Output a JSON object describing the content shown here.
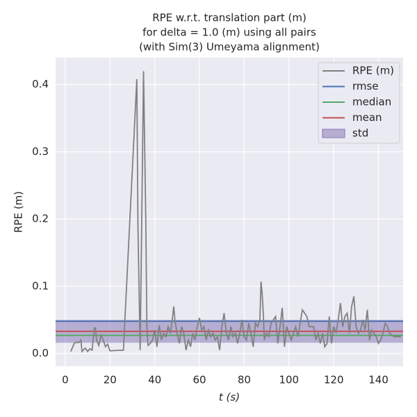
{
  "chart_data": {
    "type": "line",
    "title": [
      "RPE w.r.t. translation part (m)",
      "for delta = 1.0 (m) using all pairs",
      "(with Sim(3) Umeyama alignment)"
    ],
    "xlabel": "t (s)",
    "ylabel": "RPE (m)",
    "x": [
      2.5,
      4,
      5,
      6,
      7,
      7.5,
      8,
      9,
      10,
      11,
      12,
      13,
      13.5,
      14,
      15,
      16,
      17,
      18,
      19,
      20,
      26,
      32,
      32.5,
      33.5,
      35,
      36,
      36.5,
      37,
      38,
      39,
      40,
      41,
      42,
      43,
      44,
      45,
      46,
      47,
      48,
      48.5,
      49,
      50,
      51,
      52,
      53,
      54,
      55,
      56,
      57,
      58,
      59,
      60,
      61,
      62,
      63,
      64,
      65,
      66,
      67,
      68,
      69,
      70,
      71,
      72,
      73,
      74,
      75,
      76,
      77,
      78,
      79,
      80,
      81,
      82,
      83,
      84,
      85,
      86,
      87,
      87.5,
      88,
      88.5,
      89,
      90,
      91,
      92,
      93,
      94,
      95,
      96,
      97,
      98,
      99,
      100,
      101,
      102,
      103,
      104,
      105,
      106,
      107,
      108,
      109,
      110,
      111,
      112,
      113,
      114,
      115,
      116,
      117,
      118,
      119,
      120,
      121,
      122,
      123,
      124,
      125,
      126,
      127,
      128,
      129,
      130,
      131,
      132,
      133,
      134,
      135,
      136,
      137,
      138,
      139,
      140,
      141,
      142,
      143,
      144,
      145,
      147,
      150
    ],
    "series": [
      {
        "name": "RPE (m)",
        "color": "#808080",
        "values": [
          0.003,
          0.015,
          0.017,
          0.016,
          0.02,
          0.003,
          0.005,
          0.008,
          0.003,
          0.007,
          0.005,
          0.038,
          0.038,
          0.02,
          0.012,
          0.027,
          0.02,
          0.01,
          0.014,
          0.004,
          0.005,
          0.408,
          0.19,
          0.005,
          0.42,
          0.2,
          0.04,
          0.012,
          0.015,
          0.02,
          0.035,
          0.01,
          0.042,
          0.02,
          0.03,
          0.025,
          0.04,
          0.03,
          0.055,
          0.07,
          0.05,
          0.03,
          0.015,
          0.04,
          0.03,
          0.005,
          0.02,
          0.01,
          0.03,
          0.02,
          0.04,
          0.053,
          0.035,
          0.04,
          0.02,
          0.035,
          0.025,
          0.03,
          0.02,
          0.025,
          0.005,
          0.04,
          0.06,
          0.03,
          0.02,
          0.04,
          0.025,
          0.03,
          0.015,
          0.03,
          0.05,
          0.025,
          0.02,
          0.045,
          0.03,
          0.01,
          0.045,
          0.04,
          0.05,
          0.107,
          0.09,
          0.06,
          0.02,
          0.03,
          0.025,
          0.045,
          0.05,
          0.055,
          0.015,
          0.04,
          0.068,
          0.01,
          0.04,
          0.03,
          0.02,
          0.03,
          0.04,
          0.025,
          0.045,
          0.065,
          0.06,
          0.055,
          0.04,
          0.04,
          0.04,
          0.02,
          0.03,
          0.015,
          0.03,
          0.01,
          0.015,
          0.055,
          0.015,
          0.04,
          0.03,
          0.05,
          0.075,
          0.04,
          0.055,
          0.06,
          0.03,
          0.07,
          0.085,
          0.04,
          0.03,
          0.035,
          0.05,
          0.035,
          0.065,
          0.02,
          0.035,
          0.03,
          0.025,
          0.015,
          0.02,
          0.03,
          0.045,
          0.04,
          0.03,
          0.025,
          0.025
        ]
      }
    ],
    "reference_lines": [
      {
        "name": "rmse",
        "color": "#4c72b0",
        "value": 0.048
      },
      {
        "name": "median",
        "color": "#55a868",
        "value": 0.027
      },
      {
        "name": "mean",
        "color": "#c44e52",
        "value": 0.033
      }
    ],
    "std_band": {
      "name": "std",
      "color": "#8172b2",
      "value": 0.017
    },
    "xlim": [
      -4.3,
      151
    ],
    "ylim": [
      -0.019,
      0.44
    ],
    "xticks": [
      0,
      20,
      40,
      60,
      80,
      100,
      120,
      140
    ],
    "yticks": [
      {
        "value": 0,
        "label": "0.0"
      },
      0.1,
      0.2,
      0.3,
      0.4
    ],
    "grid": true,
    "legend": "upper right"
  }
}
